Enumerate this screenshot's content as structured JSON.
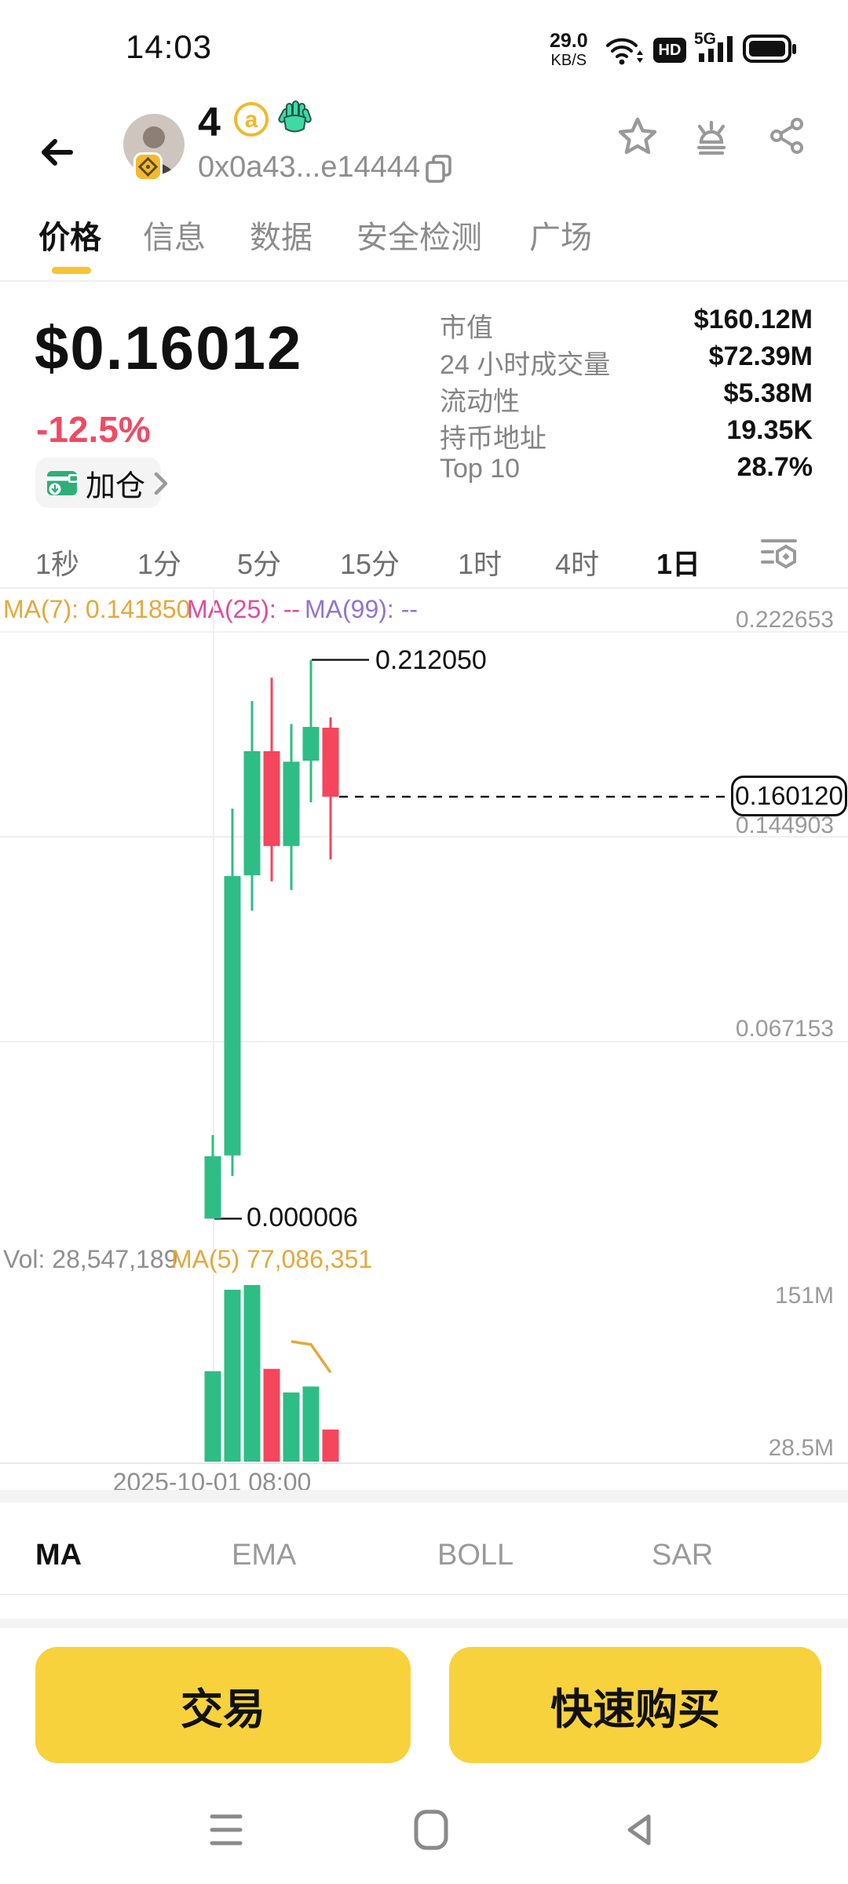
{
  "status_bar": {
    "time": "14:03",
    "net_speed": "29.0",
    "net_speed_unit": "KB/S",
    "hd_badge": "HD",
    "network": "5G"
  },
  "header": {
    "title_number": "4",
    "title_at": "a",
    "address": "0x0a43...e14444"
  },
  "nav_tabs": [
    {
      "label": "价格",
      "active": true
    },
    {
      "label": "信息",
      "active": false
    },
    {
      "label": "数据",
      "active": false
    },
    {
      "label": "安全检测",
      "active": false
    },
    {
      "label": "广场",
      "active": false
    }
  ],
  "price_section": {
    "price": "$0.16012",
    "change": "-12.5%",
    "position_badge": "加仓",
    "stats": [
      {
        "label": "市值",
        "value": "$160.12M"
      },
      {
        "label": "24 小时成交量",
        "value": "$72.39M"
      },
      {
        "label": "流动性",
        "value": "$5.38M"
      },
      {
        "label": "持币地址",
        "value": "19.35K"
      },
      {
        "label": "Top 10",
        "value": "28.7%"
      }
    ]
  },
  "timeframes": [
    {
      "label": "1秒",
      "active": false
    },
    {
      "label": "1分",
      "active": false
    },
    {
      "label": "5分",
      "active": false
    },
    {
      "label": "15分",
      "active": false
    },
    {
      "label": "1时",
      "active": false
    },
    {
      "label": "4时",
      "active": false
    },
    {
      "label": "1日",
      "active": true
    }
  ],
  "chart_data": {
    "type": "candlestick",
    "interval": "1日",
    "candles": [
      {
        "open": 6e-06,
        "high": 0.0317,
        "low": 6e-06,
        "close": 0.0237,
        "volume": 78000000
      },
      {
        "open": 0.024,
        "high": 0.1556,
        "low": 0.0162,
        "close": 0.13,
        "volume": 147000000
      },
      {
        "open": 0.1303,
        "high": 0.1964,
        "low": 0.1169,
        "close": 0.1774,
        "volume": 151000000
      },
      {
        "open": 0.1774,
        "high": 0.2053,
        "low": 0.128,
        "close": 0.1414,
        "volume": 80000000
      },
      {
        "open": 0.1414,
        "high": 0.1877,
        "low": 0.1247,
        "close": 0.1734,
        "volume": 60000000
      },
      {
        "open": 0.1738,
        "high": 0.21205,
        "low": 0.158,
        "close": 0.1866,
        "volume": 65000000
      },
      {
        "open": 0.1863,
        "high": 0.1902,
        "low": 0.1363,
        "close": 0.16012,
        "volume": 28547189
      }
    ],
    "price_axis_ticks": [
      0.222653,
      0.144903,
      0.067153
    ],
    "price_axis_tick_labels": [
      "0.222653",
      "0.144903",
      "0.067153"
    ],
    "volume_axis_tick_labels": [
      "151M",
      "28.5M"
    ],
    "annotations": {
      "high_label": "0.212050",
      "low_label": "0.000006",
      "last_price_label": "0.160120"
    },
    "overlays": {
      "ma7_label": "MA(7): 0.141850",
      "ma25_label": "MA(25): --",
      "ma99_label": "MA(99): --",
      "vol_label": "Vol: 28,547,189",
      "vol_ma5_label": "MA(5) 77,086,351"
    },
    "x_first_label": "2025-10-01 08:00",
    "colors": {
      "up": "#2EBD85",
      "down": "#F4465C",
      "ma_line": "#E2A93B",
      "grid": "#F0F0F0"
    }
  },
  "indicator_tabs": [
    {
      "label": "MA",
      "active": true
    },
    {
      "label": "EMA",
      "active": false
    },
    {
      "label": "BOLL",
      "active": false
    },
    {
      "label": "SAR",
      "active": false
    }
  ],
  "actions": {
    "trade": "交易",
    "quick_buy": "快速购买"
  }
}
